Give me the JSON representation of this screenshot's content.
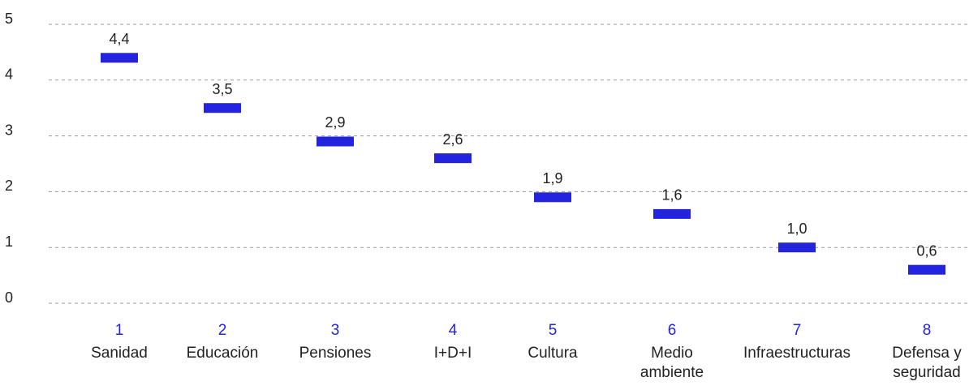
{
  "chart_data": {
    "type": "dot",
    "categories": [
      "Sanidad",
      "Educación",
      "Pensiones",
      "I+D+I",
      "Cultura",
      "Medio ambiente",
      "Infraestructuras",
      "Defensa y seguridad"
    ],
    "ranks": [
      1,
      2,
      3,
      4,
      5,
      6,
      7,
      8
    ],
    "values": [
      4.4,
      3.5,
      2.9,
      2.6,
      1.9,
      1.6,
      1.0,
      0.6
    ],
    "value_labels": [
      "4,4",
      "3,5",
      "2,9",
      "2,6",
      "1,9",
      "1,6",
      "1,0",
      "0,6"
    ],
    "color": "#2424e0",
    "ylim": [
      0,
      5
    ],
    "yticks": [
      0,
      1,
      2,
      3,
      4,
      5
    ],
    "grid": true
  }
}
